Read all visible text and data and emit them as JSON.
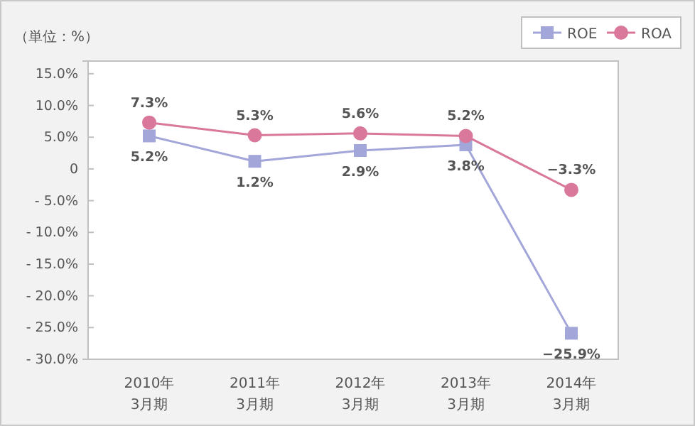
{
  "chart_data": {
    "type": "line",
    "ylabel": "（単位：%）",
    "categories": [
      "2010年\n3月期",
      "2011年\n3月期",
      "2012年\n3月期",
      "2013年\n3月期",
      "2014年\n3月期"
    ],
    "series": [
      {
        "name": "ROE",
        "color": "#a3a6d9",
        "marker": "square",
        "values": [
          5.2,
          1.2,
          2.9,
          3.8,
          -25.9
        ],
        "value_labels": [
          "5.2%",
          "1.2%",
          "2.9%",
          "3.8%",
          "−25.9%"
        ]
      },
      {
        "name": "ROA",
        "color": "#d9789a",
        "marker": "circle",
        "values": [
          7.3,
          5.3,
          5.6,
          5.2,
          -3.3
        ],
        "value_labels": [
          "7.3%",
          "5.3%",
          "5.6%",
          "5.2%",
          "−3.3%"
        ]
      }
    ],
    "ylim": [
      -30,
      17
    ],
    "yticks": [
      {
        "value": -30,
        "label": "- 30.0%"
      },
      {
        "value": -25,
        "label": "- 25.0%"
      },
      {
        "value": -20,
        "label": "- 20.0%"
      },
      {
        "value": -15,
        "label": "- 15.0%"
      },
      {
        "value": -10,
        "label": "- 10.0%"
      },
      {
        "value": -5,
        "label": "- 5.0%"
      },
      0,
      {
        "value": 5,
        "label": "5.0%"
      },
      {
        "value": 10,
        "label": "10.0%"
      },
      {
        "value": 15,
        "label": "15.0%"
      }
    ],
    "grid": false,
    "legend": "top right"
  }
}
